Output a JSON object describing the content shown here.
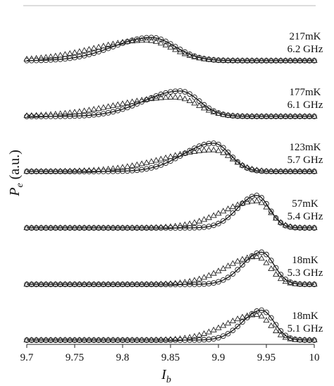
{
  "chart_data": {
    "type": "line",
    "xlabel": {
      "main": "I",
      "sub": "b"
    },
    "ylabel": {
      "main": "P",
      "sub": "e",
      "unit": " (a.u.)"
    },
    "xlim": [
      9.7,
      10.0
    ],
    "xticks": [
      "9.7",
      "9.75",
      "9.8",
      "9.85",
      "9.9",
      "9.95",
      "10"
    ],
    "grid": false,
    "panels": [
      {
        "temperature": "217mK",
        "frequency": "6.2 GHz",
        "fit": {
          "center": 9.83,
          "sigma_left": 0.04,
          "sigma_right": 0.025,
          "amplitude": 0.82
        },
        "triangles": {
          "center": 9.825,
          "sigma_left": 0.055,
          "sigma_right": 0.027,
          "amplitude": 0.72
        }
      },
      {
        "temperature": "177mK",
        "frequency": "6.1 GHz",
        "fit": {
          "center": 9.86,
          "sigma_left": 0.038,
          "sigma_right": 0.02,
          "amplitude": 0.9
        },
        "triangles": {
          "center": 9.855,
          "sigma_left": 0.06,
          "sigma_right": 0.023,
          "amplitude": 0.68
        }
      },
      {
        "temperature": "123mK",
        "frequency": "5.7 GHz",
        "fit": {
          "center": 9.895,
          "sigma_left": 0.032,
          "sigma_right": 0.017,
          "amplitude": 1.0
        },
        "triangles": {
          "center": 9.895,
          "sigma_left": 0.052,
          "sigma_right": 0.019,
          "amplitude": 0.76
        }
      },
      {
        "temperature": "57mK",
        "frequency": "5.4 GHz",
        "fit": {
          "center": 9.94,
          "sigma_left": 0.02,
          "sigma_right": 0.013,
          "amplitude": 1.15
        },
        "triangles": {
          "center": 9.94,
          "sigma_left": 0.036,
          "sigma_right": 0.014,
          "amplitude": 0.95
        }
      },
      {
        "temperature": "18mK",
        "frequency": "5.3 GHz",
        "fit": {
          "center": 9.945,
          "sigma_left": 0.02,
          "sigma_right": 0.013,
          "amplitude": 1.14
        },
        "triangles": {
          "center": 9.94,
          "sigma_left": 0.033,
          "sigma_right": 0.014,
          "amplitude": 0.98
        }
      },
      {
        "temperature": "18mK",
        "frequency": "5.1 GHz",
        "fit": {
          "center": 9.945,
          "sigma_left": 0.02,
          "sigma_right": 0.013,
          "amplitude": 1.06
        },
        "triangles": {
          "center": 9.94,
          "sigma_left": 0.033,
          "sigma_right": 0.014,
          "amplitude": 0.9
        }
      }
    ],
    "series": [
      {
        "marker": "circle",
        "style": "open"
      },
      {
        "marker": "triangle",
        "style": "open"
      },
      {
        "marker": "none",
        "style": "solid line"
      }
    ],
    "sample_step": 0.005
  }
}
